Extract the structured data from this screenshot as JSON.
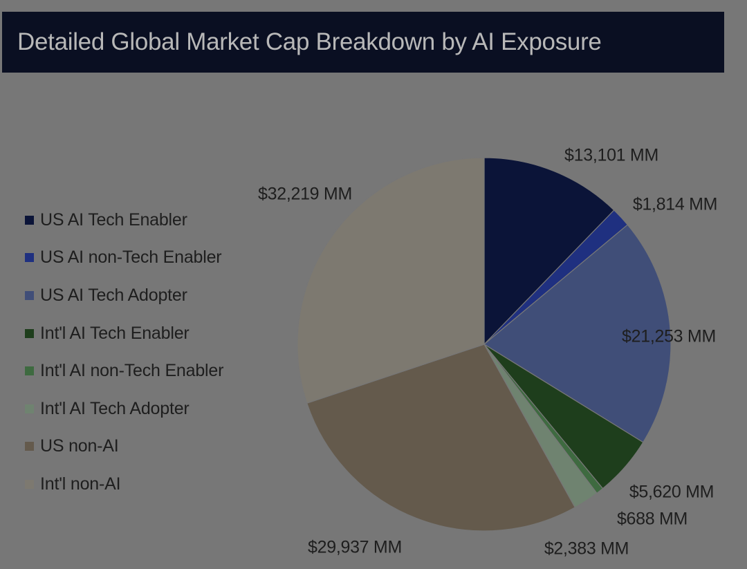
{
  "colors": {
    "background": "#777777",
    "title_bg": "#0a0f22",
    "title_text": "#b8b8b8",
    "text": "#1e1e1e"
  },
  "chart_data": {
    "type": "pie",
    "title": "Detailed Global Market Cap Breakdown by AI Exposure",
    "legend_position": "left",
    "start_angle": "12 o'clock",
    "direction": "clockwise",
    "slices": [
      {
        "name": "US AI Tech Enabler",
        "value": 13101,
        "label": "$13,101 MM",
        "color": "#0b1438"
      },
      {
        "name": "US AI non-Tech Enabler",
        "value": 1814,
        "label": "$1,814 MM",
        "color": "#1f3080"
      },
      {
        "name": "US AI Tech Adopter",
        "value": 21253,
        "label": "$21,253 MM",
        "color": "#404e78"
      },
      {
        "name": "Int'l AI Tech Enabler",
        "value": 5620,
        "label": "$5,620 MM",
        "color": "#1e3e1c"
      },
      {
        "name": "Int'l AI non-Tech Enabler",
        "value": 688,
        "label": "$688 MM",
        "color": "#3e6a40"
      },
      {
        "name": "Int'l AI Tech Adopter",
        "value": 2383,
        "label": "$2,383 MM",
        "color": "#6f8370"
      },
      {
        "name": "US non-AI",
        "value": 29937,
        "label": "$29,937 MM",
        "color": "#645a4c"
      },
      {
        "name": "Int'l non-AI",
        "value": 32219,
        "label": "$32,219 MM",
        "color": "#7d7970"
      }
    ]
  }
}
